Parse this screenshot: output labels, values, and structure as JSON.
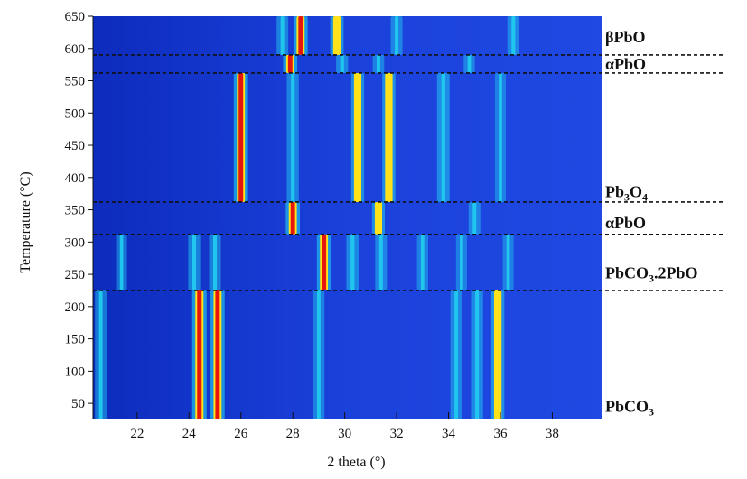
{
  "chart_data": {
    "type": "heatmap",
    "title": "",
    "xlabel": "2 theta (°)",
    "ylabel": "Temperature (°C)",
    "xlim": [
      20.3,
      39.9
    ],
    "ylim": [
      25,
      650
    ],
    "x_ticks": [
      22,
      24,
      26,
      28,
      30,
      32,
      34,
      36,
      38
    ],
    "y_ticks": [
      50,
      100,
      150,
      200,
      250,
      300,
      350,
      400,
      450,
      500,
      550,
      600,
      650
    ],
    "colors": {
      "background": "#1a3dd6",
      "low": "#0b27b0",
      "mid": "#21c6ee",
      "high_mid": "#ffe21a",
      "peak": "#e6150d"
    },
    "phase_boundaries_C": [
      590,
      562,
      362,
      312,
      225
    ],
    "phases": [
      {
        "name": "βPbO",
        "label_base": "βPbO",
        "label_sub": "",
        "label_tail": "",
        "t_label": 618
      },
      {
        "name": "αPbO",
        "label_base": "αPbO",
        "label_sub": "",
        "label_tail": "",
        "t_label": 576
      },
      {
        "name": "Pb3O4",
        "label_base": "Pb",
        "label_sub": "3",
        "label_tail": "O",
        "label_sub2": "4",
        "t_label": 378
      },
      {
        "name": "αPbO",
        "label_base": "αPbO",
        "label_sub": "",
        "label_tail": "",
        "t_label": 330
      },
      {
        "name": "PbCO3.2PbO",
        "label_base": "PbCO",
        "label_sub": "3",
        "label_tail": ".2PbO",
        "t_label": 252
      },
      {
        "name": "PbCO3",
        "label_base": "PbCO",
        "label_sub": "3",
        "label_tail": "",
        "t_label": 45
      }
    ],
    "segments": [
      {
        "t_min": 25,
        "t_max": 225,
        "peaks": [
          {
            "x": 20.6,
            "i": 0.45
          },
          {
            "x": 24.4,
            "i": 1.0
          },
          {
            "x": 25.1,
            "i": 0.95
          },
          {
            "x": 29.0,
            "i": 0.45
          },
          {
            "x": 34.3,
            "i": 0.5
          },
          {
            "x": 35.1,
            "i": 0.55
          },
          {
            "x": 35.9,
            "i": 0.75
          }
        ]
      },
      {
        "t_min": 225,
        "t_max": 312,
        "peaks": [
          {
            "x": 21.4,
            "i": 0.35
          },
          {
            "x": 24.2,
            "i": 0.55
          },
          {
            "x": 25.0,
            "i": 0.5
          },
          {
            "x": 29.2,
            "i": 0.95
          },
          {
            "x": 30.3,
            "i": 0.6
          },
          {
            "x": 31.4,
            "i": 0.5
          },
          {
            "x": 33.0,
            "i": 0.4
          },
          {
            "x": 34.5,
            "i": 0.35
          },
          {
            "x": 36.3,
            "i": 0.35
          }
        ]
      },
      {
        "t_min": 312,
        "t_max": 362,
        "peaks": [
          {
            "x": 28.0,
            "i": 0.95
          },
          {
            "x": 31.3,
            "i": 0.7
          },
          {
            "x": 35.0,
            "i": 0.5
          }
        ]
      },
      {
        "t_min": 362,
        "t_max": 562,
        "peaks": [
          {
            "x": 26.0,
            "i": 0.97
          },
          {
            "x": 28.0,
            "i": 0.55
          },
          {
            "x": 30.5,
            "i": 0.72
          },
          {
            "x": 31.7,
            "i": 0.75
          },
          {
            "x": 33.8,
            "i": 0.65
          },
          {
            "x": 36.0,
            "i": 0.35
          }
        ]
      },
      {
        "t_min": 562,
        "t_max": 590,
        "peaks": [
          {
            "x": 27.9,
            "i": 0.95
          },
          {
            "x": 29.9,
            "i": 0.55
          },
          {
            "x": 31.3,
            "i": 0.45
          },
          {
            "x": 34.8,
            "i": 0.4
          }
        ]
      },
      {
        "t_min": 590,
        "t_max": 650,
        "peaks": [
          {
            "x": 27.6,
            "i": 0.5
          },
          {
            "x": 28.3,
            "i": 0.95
          },
          {
            "x": 29.7,
            "i": 0.8
          },
          {
            "x": 32.0,
            "i": 0.5
          },
          {
            "x": 36.5,
            "i": 0.55
          }
        ]
      }
    ]
  }
}
